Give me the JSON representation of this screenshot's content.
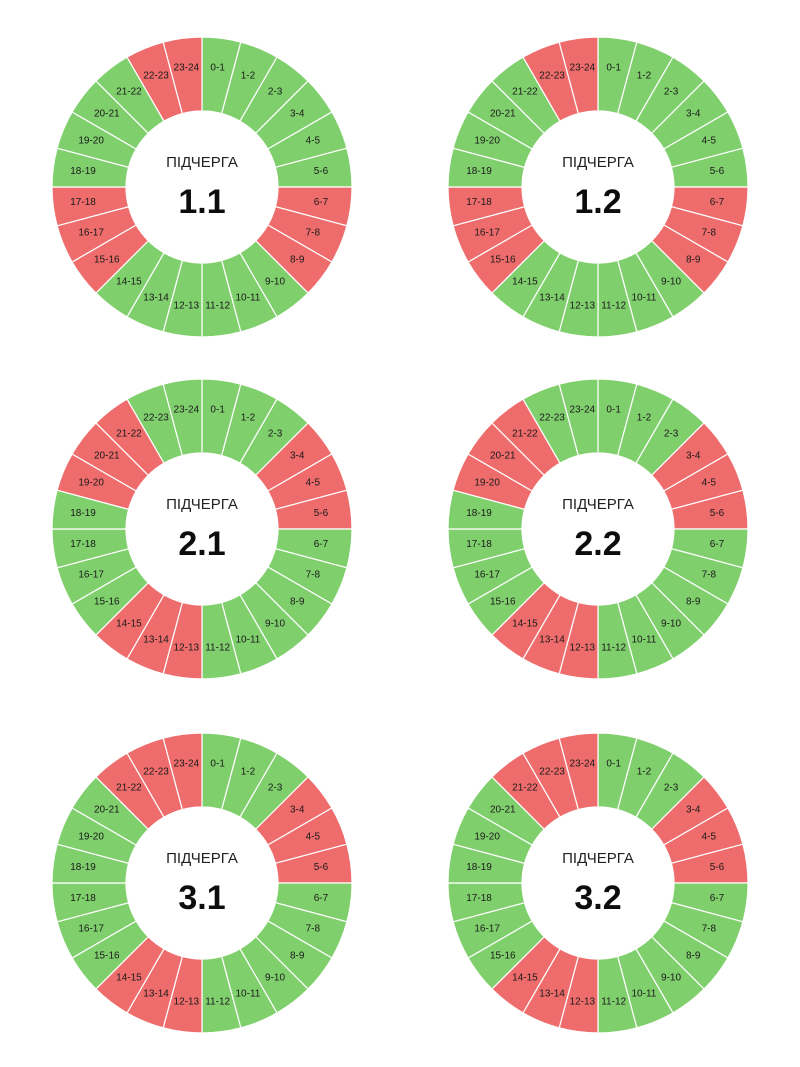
{
  "colors": {
    "on": "#80cf6d",
    "off": "#ef6c6c"
  },
  "chart_data": [
    {
      "type": "pie",
      "caption": "ПІДЧЕРГА",
      "title": "1.1",
      "hour_labels": [
        "0-1",
        "1-2",
        "2-3",
        "3-4",
        "4-5",
        "5-6",
        "6-7",
        "7-8",
        "8-9",
        "9-10",
        "10-11",
        "11-12",
        "12-13",
        "13-14",
        "14-15",
        "15-16",
        "16-17",
        "17-18",
        "18-19",
        "19-20",
        "20-21",
        "21-22",
        "22-23",
        "23-24"
      ],
      "status": [
        "on",
        "on",
        "on",
        "on",
        "on",
        "on",
        "off",
        "off",
        "off",
        "on",
        "on",
        "on",
        "on",
        "on",
        "on",
        "off",
        "off",
        "off",
        "on",
        "on",
        "on",
        "on",
        "off",
        "off"
      ]
    },
    {
      "type": "pie",
      "caption": "ПІДЧЕРГА",
      "title": "1.2",
      "hour_labels": [
        "0-1",
        "1-2",
        "2-3",
        "3-4",
        "4-5",
        "5-6",
        "6-7",
        "7-8",
        "8-9",
        "9-10",
        "10-11",
        "11-12",
        "12-13",
        "13-14",
        "14-15",
        "15-16",
        "16-17",
        "17-18",
        "18-19",
        "19-20",
        "20-21",
        "21-22",
        "22-23",
        "23-24"
      ],
      "status": [
        "on",
        "on",
        "on",
        "on",
        "on",
        "on",
        "off",
        "off",
        "off",
        "on",
        "on",
        "on",
        "on",
        "on",
        "on",
        "off",
        "off",
        "off",
        "on",
        "on",
        "on",
        "on",
        "off",
        "off"
      ]
    },
    {
      "type": "pie",
      "caption": "ПІДЧЕРГА",
      "title": "2.1",
      "hour_labels": [
        "0-1",
        "1-2",
        "2-3",
        "3-4",
        "4-5",
        "5-6",
        "6-7",
        "7-8",
        "8-9",
        "9-10",
        "10-11",
        "11-12",
        "12-13",
        "13-14",
        "14-15",
        "15-16",
        "16-17",
        "17-18",
        "18-19",
        "19-20",
        "20-21",
        "21-22",
        "22-23",
        "23-24"
      ],
      "status": [
        "on",
        "on",
        "on",
        "off",
        "off",
        "off",
        "on",
        "on",
        "on",
        "on",
        "on",
        "on",
        "off",
        "off",
        "off",
        "on",
        "on",
        "on",
        "on",
        "off",
        "off",
        "off",
        "on",
        "on"
      ]
    },
    {
      "type": "pie",
      "caption": "ПІДЧЕРГА",
      "title": "2.2",
      "hour_labels": [
        "0-1",
        "1-2",
        "2-3",
        "3-4",
        "4-5",
        "5-6",
        "6-7",
        "7-8",
        "8-9",
        "9-10",
        "10-11",
        "11-12",
        "12-13",
        "13-14",
        "14-15",
        "15-16",
        "16-17",
        "17-18",
        "18-19",
        "19-20",
        "20-21",
        "21-22",
        "22-23",
        "23-24"
      ],
      "status": [
        "on",
        "on",
        "on",
        "off",
        "off",
        "off",
        "on",
        "on",
        "on",
        "on",
        "on",
        "on",
        "off",
        "off",
        "off",
        "on",
        "on",
        "on",
        "on",
        "off",
        "off",
        "off",
        "on",
        "on"
      ]
    },
    {
      "type": "pie",
      "caption": "ПІДЧЕРГА",
      "title": "3.1",
      "hour_labels": [
        "0-1",
        "1-2",
        "2-3",
        "3-4",
        "4-5",
        "5-6",
        "6-7",
        "7-8",
        "8-9",
        "9-10",
        "10-11",
        "11-12",
        "12-13",
        "13-14",
        "14-15",
        "15-16",
        "16-17",
        "17-18",
        "18-19",
        "19-20",
        "20-21",
        "21-22",
        "22-23",
        "23-24"
      ],
      "status": [
        "on",
        "on",
        "on",
        "off",
        "off",
        "off",
        "on",
        "on",
        "on",
        "on",
        "on",
        "on",
        "off",
        "off",
        "off",
        "on",
        "on",
        "on",
        "on",
        "on",
        "on",
        "off",
        "off",
        "off"
      ]
    },
    {
      "type": "pie",
      "caption": "ПІДЧЕРГА",
      "title": "3.2",
      "hour_labels": [
        "0-1",
        "1-2",
        "2-3",
        "3-4",
        "4-5",
        "5-6",
        "6-7",
        "7-8",
        "8-9",
        "9-10",
        "10-11",
        "11-12",
        "12-13",
        "13-14",
        "14-15",
        "15-16",
        "16-17",
        "17-18",
        "18-19",
        "19-20",
        "20-21",
        "21-22",
        "22-23",
        "23-24"
      ],
      "status": [
        "on",
        "on",
        "on",
        "off",
        "off",
        "off",
        "on",
        "on",
        "on",
        "on",
        "on",
        "on",
        "off",
        "off",
        "off",
        "on",
        "on",
        "on",
        "on",
        "on",
        "on",
        "off",
        "off",
        "off"
      ]
    }
  ]
}
